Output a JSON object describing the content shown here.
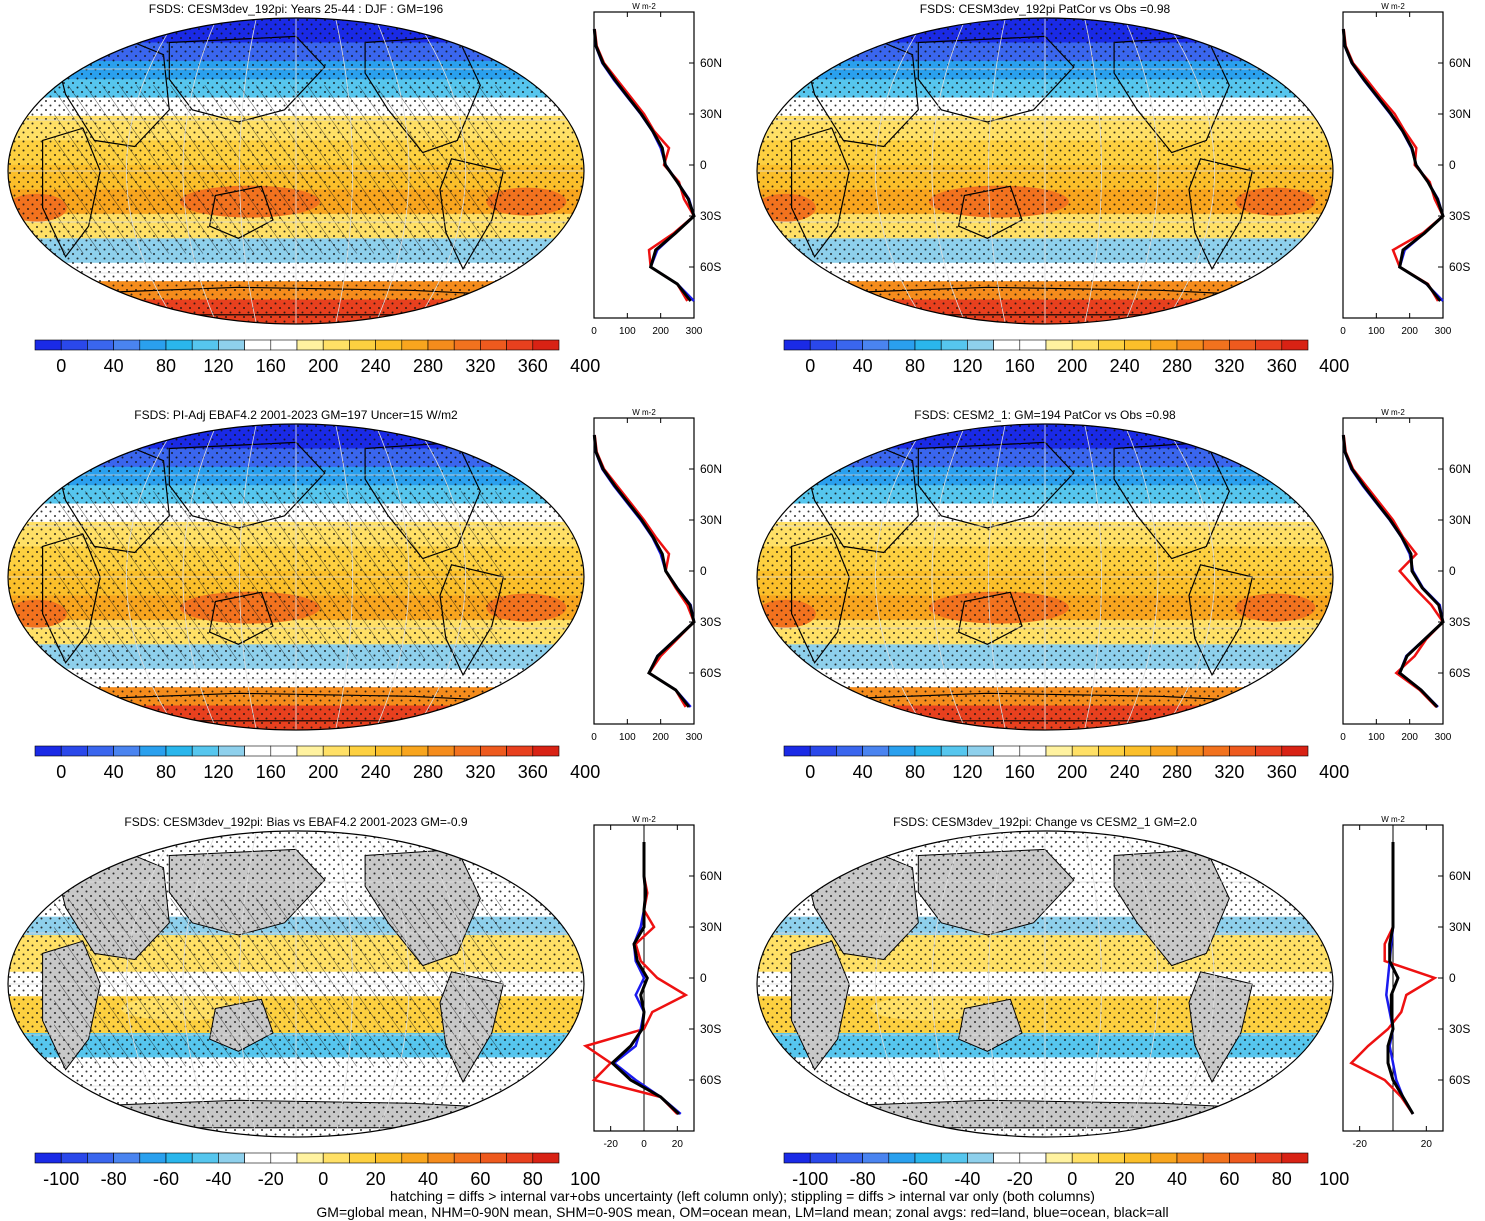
{
  "colors": {
    "fsds_levels": [
      "#1a2ae6",
      "#2a48ea",
      "#3a66ee",
      "#4a84f0",
      "#2aa0ee",
      "#2ab6ec",
      "#56c6ee",
      "#8ed0ec",
      "#ffffff",
      "#ffffff",
      "#fff2a0",
      "#ffe066",
      "#fdd040",
      "#fbbf2a",
      "#f8a51e",
      "#f58c1c",
      "#f2721e",
      "#ee5a1e",
      "#e8401e",
      "#d82214"
    ],
    "diff_levels": [
      "#1a2ae6",
      "#2a48ea",
      "#3a66ee",
      "#4a84f0",
      "#2aa0ee",
      "#2ab6ec",
      "#56c6ee",
      "#8ed0ec",
      "#ffffff",
      "#ffffff",
      "#fff2a0",
      "#ffe066",
      "#fdd040",
      "#fbbf2a",
      "#f8a51e",
      "#f58c1c",
      "#f2721e",
      "#ee5a1e",
      "#e8401e",
      "#d82214"
    ],
    "land_mask": "#c8c8c8",
    "zonal_land": "#ee1111",
    "zonal_ocean": "#1a1aee",
    "zonal_all": "#000000"
  },
  "colorbar_fsds_labels": [
    "0",
    "40",
    "80",
    "120",
    "160",
    "200",
    "240",
    "280",
    "320",
    "360",
    "400"
  ],
  "colorbar_diff_labels": [
    "-100",
    "-80",
    "-60",
    "-40",
    "-20",
    "0",
    "20",
    "40",
    "60",
    "80",
    "100"
  ],
  "zonal_lat_labels": [
    "60N",
    "30N",
    "0",
    "30S",
    "60S"
  ],
  "zonal_unit": "W m-2",
  "zonal_x_labels_fsds": [
    "0",
    "100",
    "200",
    "300"
  ],
  "zonal_x_labels_diff": [
    "-20",
    "0",
    "20"
  ],
  "zonal_x_labels_diff_right": [
    "-20",
    "20"
  ],
  "chart_data": [
    {
      "type": "heatmap",
      "title": "FSDS: CESM3dev_192pi: Years 25-44 : DJF : GM=196",
      "zonal_avg": {
        "type": "line",
        "lat": [
          -80,
          -70,
          -60,
          -50,
          -40,
          -30,
          -20,
          -10,
          0,
          10,
          20,
          30,
          40,
          50,
          60,
          70,
          80
        ],
        "series": [
          {
            "name": "land",
            "values": [
              280,
              250,
              170,
              165,
              240,
              300,
              270,
              255,
              210,
              225,
              180,
              150,
              110,
              70,
              30,
              8,
              2
            ]
          },
          {
            "name": "ocean",
            "values": [
              300,
              250,
              170,
              190,
              245,
              300,
              285,
              250,
              215,
              200,
              175,
              140,
              100,
              60,
              25,
              5,
              1
            ]
          },
          {
            "name": "all",
            "values": [
              290,
              250,
              170,
              185,
              245,
              300,
              283,
              250,
              214,
              205,
              176,
              142,
              102,
              63,
              27,
              6,
              1
            ]
          }
        ]
      }
    },
    {
      "type": "heatmap",
      "title": "FSDS: CESM3dev_192pi PatCor vs Obs =0.98",
      "zonal_avg": {
        "type": "line",
        "lat": [
          -80,
          -70,
          -60,
          -50,
          -40,
          -30,
          -20,
          -10,
          0,
          10,
          20,
          30,
          40,
          50,
          60,
          70,
          80
        ],
        "series": [
          {
            "name": "land",
            "values": [
              285,
              255,
              170,
              150,
              240,
              300,
              275,
              260,
              215,
              220,
              185,
              155,
              112,
              72,
              30,
              8,
              2
            ]
          },
          {
            "name": "ocean",
            "values": [
              300,
              250,
              170,
              185,
              245,
              300,
              285,
              255,
              220,
              205,
              178,
              142,
              102,
              62,
              26,
              5,
              1
            ]
          },
          {
            "name": "all",
            "values": [
              292,
              252,
              170,
              180,
              245,
              300,
              283,
              255,
              219,
              207,
              179,
              144,
              104,
              64,
              27,
              6,
              1
            ]
          }
        ]
      }
    },
    {
      "type": "heatmap",
      "title": "FSDS: PI-Adj EBAF4.2 2001-2023 GM=197 Uncer=15 W/m2",
      "zonal_avg": {
        "type": "line",
        "lat": [
          -80,
          -70,
          -60,
          -50,
          -40,
          -30,
          -20,
          -10,
          0,
          10,
          20,
          30,
          40,
          50,
          60,
          70,
          80
        ],
        "series": [
          {
            "name": "land",
            "values": [
              275,
              245,
              165,
              200,
              250,
              300,
              280,
              245,
              215,
              225,
              185,
              150,
              110,
              70,
              30,
              8,
              2
            ]
          },
          {
            "name": "ocean",
            "values": [
              290,
              245,
              165,
              190,
              245,
              300,
              290,
              250,
              215,
              200,
              175,
              140,
              100,
              60,
              25,
              5,
              1
            ]
          },
          {
            "name": "all",
            "values": [
              285,
              245,
              165,
              191,
              246,
              300,
              288,
              249,
              215,
              205,
              177,
              143,
              103,
              63,
              27,
              6,
              1
            ]
          }
        ]
      }
    },
    {
      "type": "heatmap",
      "title": "FSDS: CESM2_1: GM=194 PatCor vs Obs =0.98",
      "zonal_avg": {
        "type": "line",
        "lat": [
          -80,
          -70,
          -60,
          -50,
          -40,
          -30,
          -20,
          -10,
          0,
          10,
          20,
          30,
          40,
          50,
          60,
          70,
          80
        ],
        "series": [
          {
            "name": "land",
            "values": [
              280,
              230,
              160,
              215,
              250,
              300,
              265,
              215,
              170,
              220,
              180,
              150,
              110,
              70,
              30,
              8,
              2
            ]
          },
          {
            "name": "ocean",
            "values": [
              285,
              235,
              170,
              190,
              245,
              300,
              290,
              240,
              210,
              200,
              175,
              140,
              100,
              60,
              25,
              5,
              1
            ]
          },
          {
            "name": "all",
            "values": [
              283,
              234,
              170,
              192,
              246,
              300,
              287,
              238,
              207,
              204,
              176,
              142,
              102,
              63,
              27,
              6,
              1
            ]
          }
        ]
      }
    },
    {
      "type": "heatmap",
      "title": "FSDS: CESM3dev_192pi: Bias vs EBAF4.2 2001-2023 GM=-0.9",
      "zonal_avg": {
        "type": "line",
        "lat": [
          -80,
          -70,
          -60,
          -50,
          -40,
          -30,
          -20,
          -10,
          0,
          10,
          20,
          30,
          40,
          50,
          60,
          70,
          80
        ],
        "series": [
          {
            "name": "land",
            "values": [
              20,
              10,
              -30,
              -20,
              -35,
              0,
              5,
              25,
              8,
              -2,
              -5,
              6,
              0,
              2,
              0,
              0,
              0
            ]
          },
          {
            "name": "ocean",
            "values": [
              22,
              10,
              -5,
              -18,
              -5,
              -2,
              0,
              -5,
              0,
              -5,
              -6,
              -2,
              0,
              1,
              0,
              0,
              0
            ]
          },
          {
            "name": "all",
            "values": [
              21,
              10,
              -8,
              -19,
              -8,
              -1,
              0,
              -2,
              2,
              -4,
              -6,
              0,
              0,
              1,
              0,
              0,
              0
            ]
          }
        ]
      }
    },
    {
      "type": "heatmap",
      "title": "FSDS: CESM3dev_192pi: Change vs CESM2_1 GM=2.0",
      "zonal_avg": {
        "type": "line",
        "lat": [
          -80,
          -70,
          -60,
          -50,
          -40,
          -30,
          -20,
          -10,
          0,
          10,
          20,
          30,
          40,
          50,
          60,
          70,
          80
        ],
        "series": [
          {
            "name": "land",
            "values": [
              12,
              5,
              -5,
              -25,
              -15,
              -3,
              5,
              8,
              25,
              -5,
              -5,
              0,
              0,
              0,
              0,
              0,
              0
            ]
          },
          {
            "name": "ocean",
            "values": [
              12,
              6,
              2,
              0,
              -2,
              0,
              -2,
              -4,
              -3,
              -2,
              -1,
              0,
              0,
              0,
              0,
              0,
              0
            ]
          },
          {
            "name": "all",
            "values": [
              12,
              6,
              0,
              -3,
              -3,
              0,
              -1,
              -1,
              3,
              -2,
              -2,
              0,
              0,
              0,
              0,
              0,
              0
            ]
          }
        ]
      }
    }
  ],
  "footer": {
    "line1": "hatching = diffs > internal var+obs uncertainty (left column only); stippling = diffs > internal var only (both columns)",
    "line2": "GM=global mean, NHM=0-90N mean, SHM=0-90S mean, OM=ocean mean, LM=land mean; zonal avgs: red=land, blue=ocean, black=all"
  }
}
